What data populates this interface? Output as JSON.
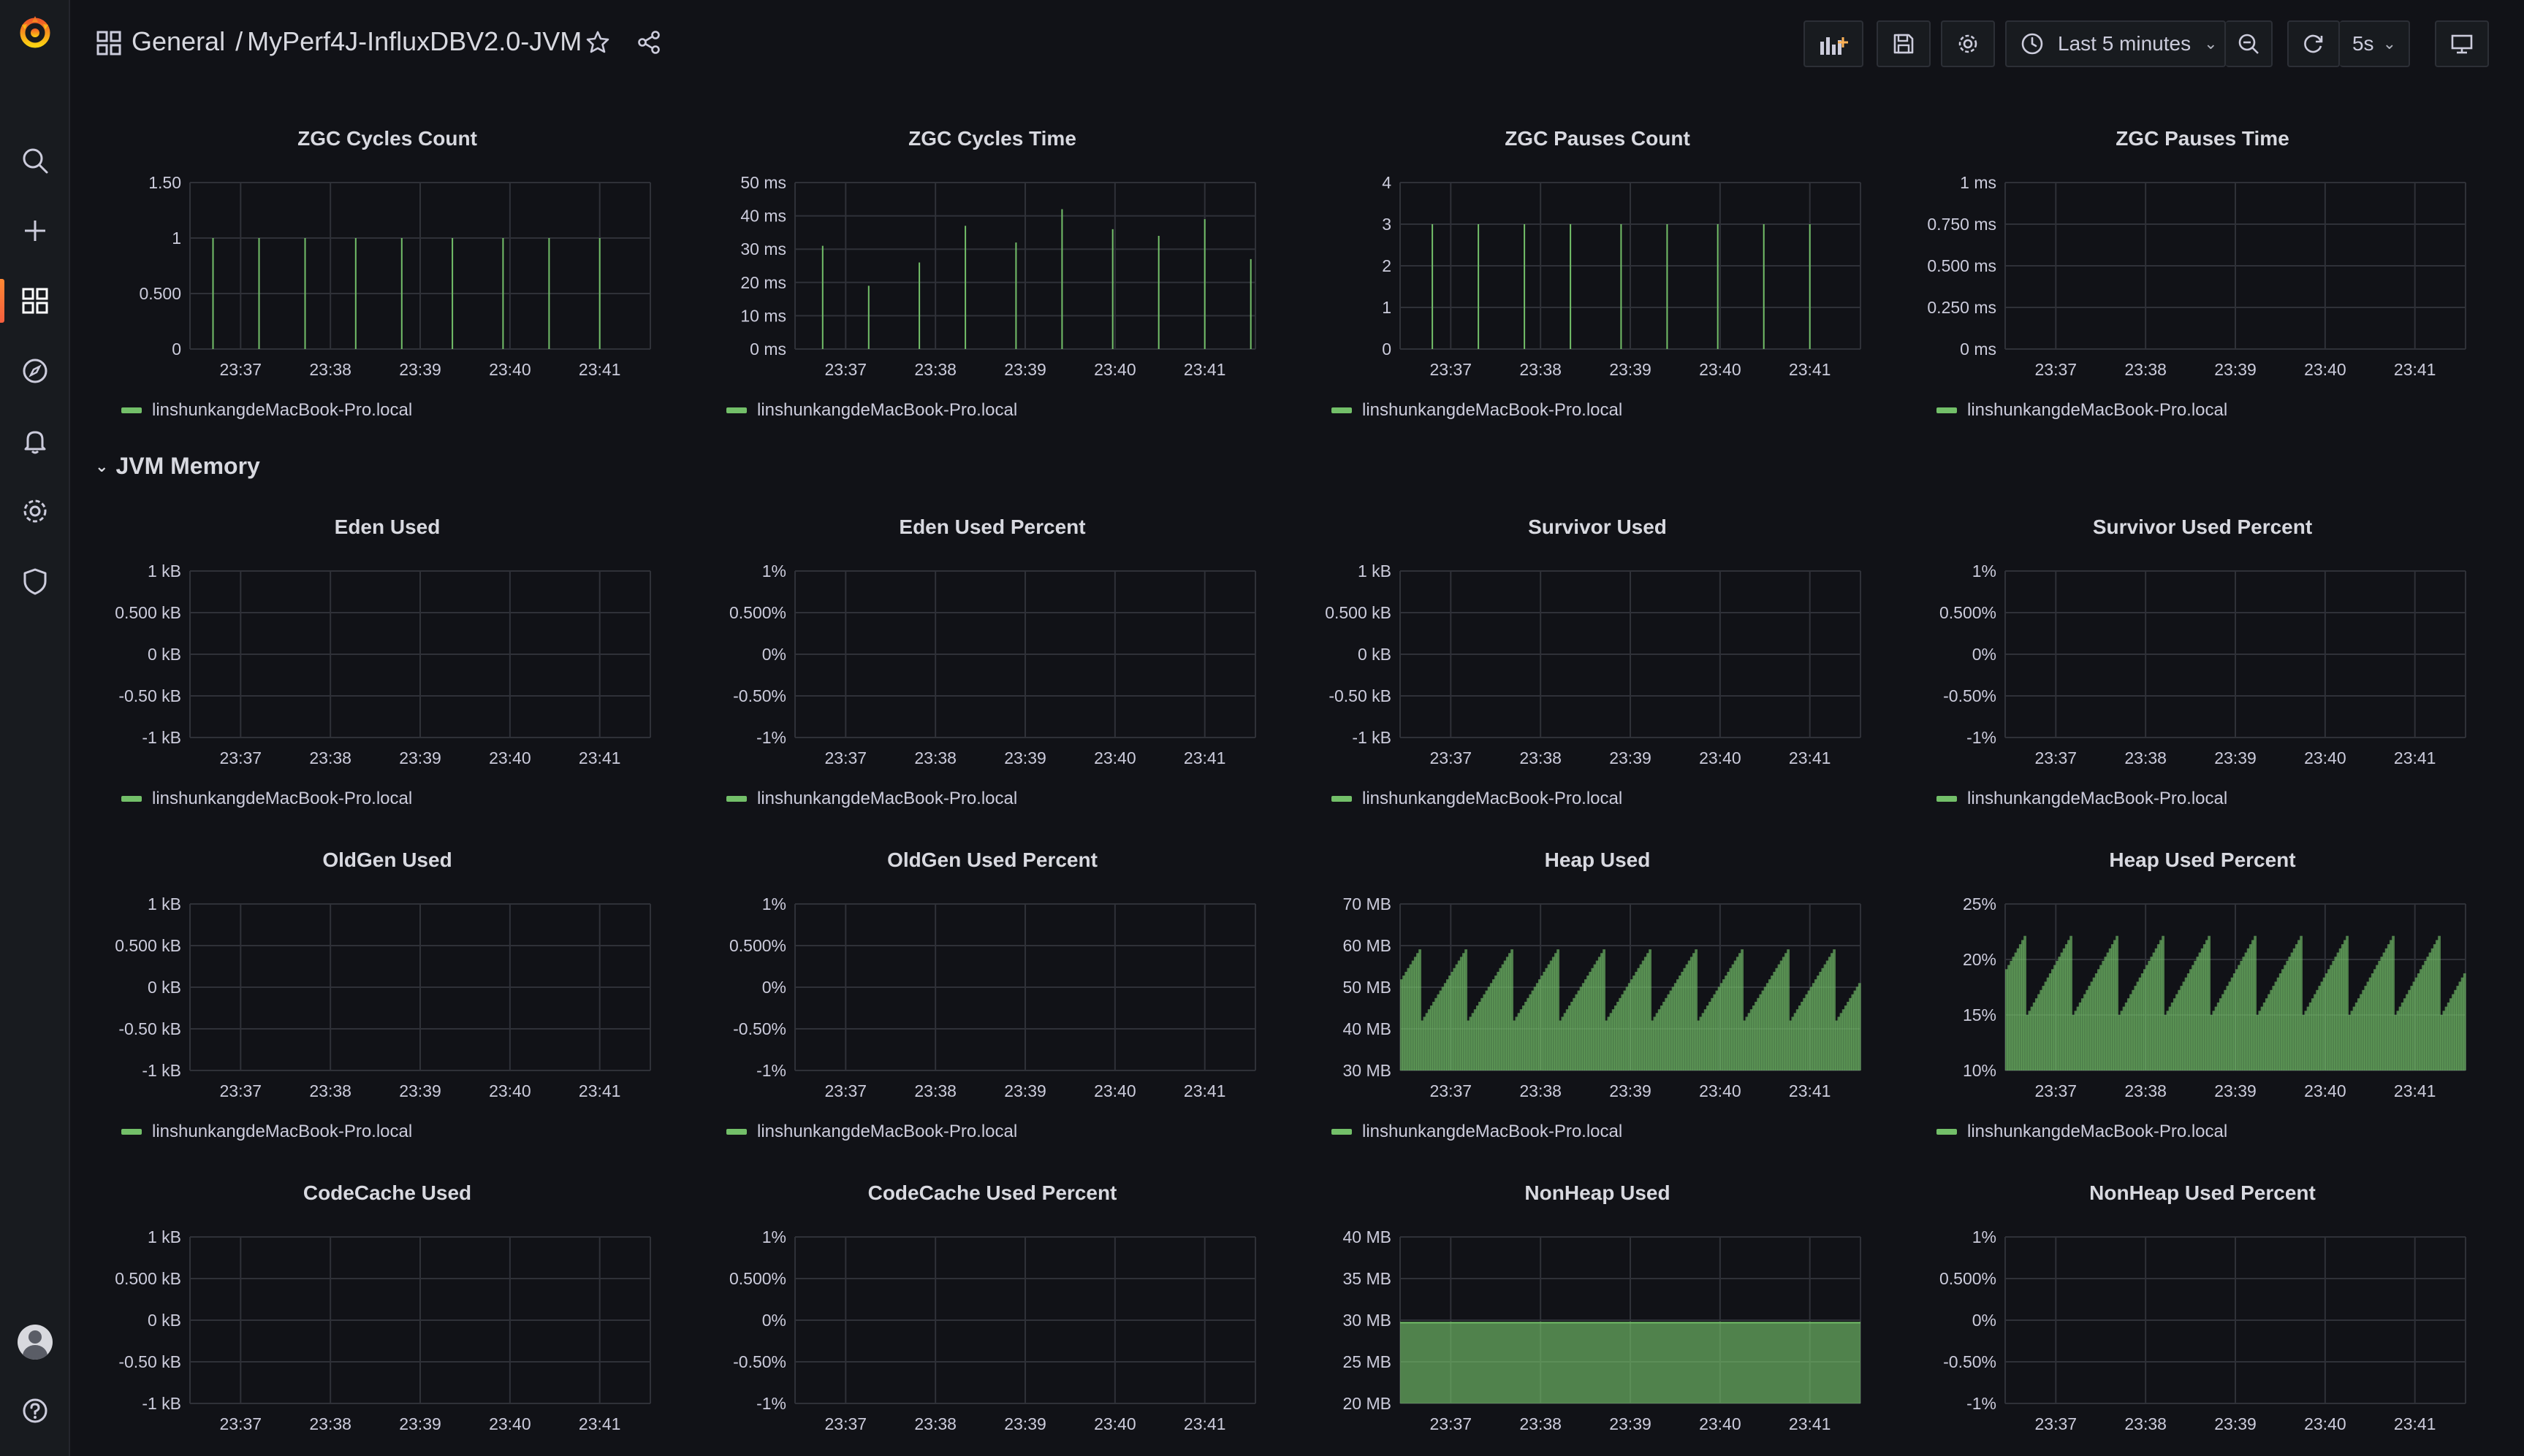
{
  "header": {
    "folder": "General",
    "separator": "/",
    "dashboard_title": "MyPerf4J-InfluxDBV2.0-JVM",
    "time_range": "Last 5 minutes",
    "refresh_interval": "5s"
  },
  "sidebar": {
    "items": [
      "grafana-logo",
      "search-icon",
      "plus-icon",
      "dashboards-icon",
      "explore-icon",
      "alerting-icon",
      "configuration-icon",
      "shield-icon",
      "avatar",
      "help-icon"
    ]
  },
  "rows": [
    {
      "title": "JVM Memory",
      "collapsed": false
    }
  ],
  "legend_series": "linshunkangdeMacBook-Pro.local",
  "series_color": "#73bf69",
  "x_ticks": [
    "23:37",
    "23:38",
    "23:39",
    "23:40",
    "23:41"
  ],
  "chart_data": [
    {
      "name": "zgc-cycles-count",
      "type": "bar",
      "title": "ZGC Cycles Count",
      "y_ticks": [
        "1.50",
        "1",
        "0.500",
        "0"
      ],
      "ylim": [
        0,
        1.5
      ],
      "time_positions": [
        0.05,
        0.15,
        0.25,
        0.36,
        0.46,
        0.57,
        0.68,
        0.78,
        0.89
      ],
      "values": [
        1,
        1,
        1,
        1,
        1,
        1,
        1,
        1,
        1
      ]
    },
    {
      "name": "zgc-cycles-time",
      "type": "bar",
      "title": "ZGC Cycles Time",
      "y_ticks": [
        "50 ms",
        "40 ms",
        "30 ms",
        "20 ms",
        "10 ms",
        "0 ms"
      ],
      "ylim": [
        0,
        50
      ],
      "time_positions": [
        0.06,
        0.16,
        0.27,
        0.37,
        0.48,
        0.58,
        0.69,
        0.79,
        0.89,
        0.99
      ],
      "values": [
        31,
        19,
        26,
        37,
        32,
        42,
        36,
        34,
        39,
        27
      ]
    },
    {
      "name": "zgc-pauses-count",
      "type": "bar",
      "title": "ZGC Pauses Count",
      "y_ticks": [
        "4",
        "3",
        "2",
        "1",
        "0"
      ],
      "ylim": [
        0,
        4
      ],
      "time_positions": [
        0.07,
        0.17,
        0.27,
        0.37,
        0.48,
        0.58,
        0.69,
        0.79,
        0.89
      ],
      "values": [
        3,
        3,
        3,
        3,
        3,
        3,
        3,
        3,
        3
      ]
    },
    {
      "name": "zgc-pauses-time",
      "type": "line",
      "title": "ZGC Pauses Time",
      "y_ticks": [
        "1 ms",
        "0.750 ms",
        "0.500 ms",
        "0.250 ms",
        "0 ms"
      ],
      "ylim": [
        0,
        1
      ],
      "values": []
    },
    {
      "name": "eden-used",
      "type": "line",
      "title": "Eden Used",
      "y_ticks": [
        "1 kB",
        "0.500 kB",
        "0 kB",
        "-0.50 kB",
        "-1 kB"
      ],
      "ylim": [
        -1,
        1
      ],
      "values": []
    },
    {
      "name": "eden-used-percent",
      "type": "line",
      "title": "Eden Used Percent",
      "y_ticks": [
        "1%",
        "0.500%",
        "0%",
        "-0.50%",
        "-1%"
      ],
      "ylim": [
        -1,
        1
      ],
      "values": []
    },
    {
      "name": "survivor-used",
      "type": "line",
      "title": "Survivor Used",
      "y_ticks": [
        "1 kB",
        "0.500 kB",
        "0 kB",
        "-0.50 kB",
        "-1 kB"
      ],
      "ylim": [
        -1,
        1
      ],
      "values": []
    },
    {
      "name": "survivor-used-percent",
      "type": "line",
      "title": "Survivor Used Percent",
      "y_ticks": [
        "1%",
        "0.500%",
        "0%",
        "-0.50%",
        "-1%"
      ],
      "ylim": [
        -1,
        1
      ],
      "values": []
    },
    {
      "name": "oldgen-used",
      "type": "line",
      "title": "OldGen Used",
      "y_ticks": [
        "1 kB",
        "0.500 kB",
        "0 kB",
        "-0.50 kB",
        "-1 kB"
      ],
      "ylim": [
        -1,
        1
      ],
      "values": []
    },
    {
      "name": "oldgen-used-percent",
      "type": "line",
      "title": "OldGen Used Percent",
      "y_ticks": [
        "1%",
        "0.500%",
        "0%",
        "-0.50%",
        "-1%"
      ],
      "ylim": [
        -1,
        1
      ],
      "values": []
    },
    {
      "name": "heap-used",
      "type": "area",
      "title": "Heap Used",
      "y_ticks": [
        "70 MB",
        "60 MB",
        "50 MB",
        "40 MB",
        "30 MB"
      ],
      "ylim": [
        30,
        70
      ],
      "sawtooth": {
        "cycles": 10,
        "min": 42,
        "max": 60,
        "unit": "MB"
      }
    },
    {
      "name": "heap-used-percent",
      "type": "area",
      "title": "Heap Used Percent",
      "y_ticks": [
        "25%",
        "20%",
        "15%",
        "10%"
      ],
      "ylim": [
        10,
        25
      ],
      "sawtooth": {
        "cycles": 10,
        "min": 15,
        "max": 22.5,
        "unit": "%"
      }
    },
    {
      "name": "codecache-used",
      "type": "line",
      "title": "CodeCache Used",
      "y_ticks": [
        "1 kB",
        "0.500 kB",
        "0 kB",
        "-0.50 kB",
        "-1 kB"
      ],
      "ylim": [
        -1,
        1
      ],
      "values": []
    },
    {
      "name": "codecache-used-percent",
      "type": "line",
      "title": "CodeCache Used Percent",
      "y_ticks": [
        "1%",
        "0.500%",
        "0%",
        "-0.50%",
        "-1%"
      ],
      "ylim": [
        -1,
        1
      ],
      "values": []
    },
    {
      "name": "nonheap-used",
      "type": "area",
      "title": "NonHeap Used",
      "y_ticks": [
        "40 MB",
        "35 MB",
        "30 MB",
        "25 MB",
        "20 MB"
      ],
      "ylim": [
        20,
        40
      ],
      "constant": 29.7
    },
    {
      "name": "nonheap-used-percent",
      "type": "line",
      "title": "NonHeap Used Percent",
      "y_ticks": [
        "1%",
        "0.500%",
        "0%",
        "-0.50%",
        "-1%"
      ],
      "ylim": [
        -1,
        1
      ],
      "values": []
    }
  ]
}
